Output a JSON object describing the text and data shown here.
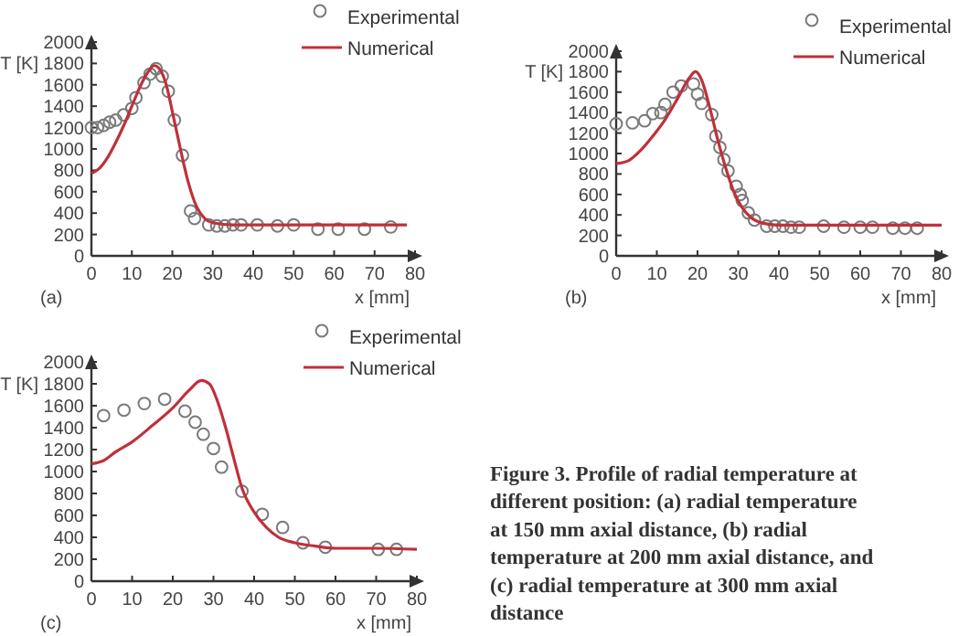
{
  "chart_data": [
    {
      "type": "line",
      "xlabel": "x [mm]",
      "ylabel": "T [K]",
      "annotations": [
        "(a)"
      ],
      "xlim": [
        0,
        80
      ],
      "ylim": [
        0,
        2000
      ],
      "xticks": [
        0,
        10,
        20,
        30,
        40,
        50,
        60,
        70,
        80
      ],
      "yticks": [
        0,
        200,
        400,
        600,
        800,
        1000,
        1200,
        1400,
        1600,
        1800,
        2000
      ],
      "grid": false,
      "legend": "top right",
      "series": [
        {
          "name": "Experimental",
          "type": "scatter",
          "marker": "circle",
          "color": "#7a7a7a",
          "x": [
            0,
            1.5,
            3,
            4.5,
            6,
            8,
            10,
            11,
            13,
            14.5,
            16,
            17.5,
            19,
            20.5,
            22.5,
            24.5,
            25.5,
            29,
            31,
            33,
            35,
            37,
            41,
            46,
            50,
            56,
            61,
            67.5,
            74
          ],
          "values": [
            1200,
            1200,
            1220,
            1250,
            1270,
            1320,
            1380,
            1480,
            1620,
            1700,
            1750,
            1680,
            1540,
            1270,
            940,
            420,
            350,
            290,
            280,
            280,
            290,
            290,
            290,
            280,
            290,
            250,
            250,
            250,
            270
          ]
        },
        {
          "name": "Numerical",
          "type": "line",
          "line_style": "solid",
          "color": "#c0303a",
          "x": [
            0,
            2,
            4,
            6,
            8,
            10,
            12,
            14,
            15.5,
            17,
            18.5,
            20,
            22,
            24,
            26,
            28,
            30,
            35,
            40,
            50,
            60,
            78
          ],
          "values": [
            770,
            820,
            920,
            1060,
            1220,
            1400,
            1580,
            1720,
            1780,
            1740,
            1600,
            1350,
            1000,
            680,
            460,
            350,
            310,
            290,
            290,
            290,
            290,
            290
          ]
        }
      ]
    },
    {
      "type": "line",
      "xlabel": "x [mm]",
      "ylabel": "T [K]",
      "annotations": [
        "(b)"
      ],
      "xlim": [
        0,
        80
      ],
      "ylim": [
        0,
        2000
      ],
      "xticks": [
        0,
        10,
        20,
        30,
        40,
        50,
        60,
        70,
        80
      ],
      "yticks": [
        0,
        200,
        400,
        600,
        800,
        1000,
        1200,
        1400,
        1600,
        1800,
        2000
      ],
      "grid": false,
      "legend": "top right",
      "series": [
        {
          "name": "Experimental",
          "type": "scatter",
          "marker": "circle",
          "color": "#7a7a7a",
          "x": [
            0,
            4,
            7,
            9,
            11,
            12,
            14,
            16,
            19,
            20,
            21,
            23.5,
            24.5,
            25.5,
            26.5,
            27.5,
            29.5,
            30.5,
            31,
            32.5,
            34,
            37,
            39,
            41,
            43,
            45,
            51,
            56,
            60,
            63,
            68,
            71,
            74
          ],
          "values": [
            1290,
            1300,
            1320,
            1390,
            1400,
            1480,
            1600,
            1660,
            1680,
            1580,
            1490,
            1380,
            1170,
            1060,
            940,
            830,
            680,
            600,
            540,
            420,
            350,
            290,
            290,
            290,
            280,
            280,
            290,
            280,
            280,
            280,
            270,
            270,
            270
          ]
        },
        {
          "name": "Numerical",
          "type": "line",
          "line_style": "solid",
          "color": "#c0303a",
          "x": [
            0,
            3,
            6,
            9,
            12,
            15,
            18,
            19.5,
            21,
            23,
            25,
            27,
            29,
            31,
            33,
            36,
            40,
            50,
            60,
            80
          ],
          "values": [
            900,
            930,
            1030,
            1170,
            1330,
            1530,
            1740,
            1800,
            1720,
            1450,
            1130,
            850,
            620,
            470,
            380,
            320,
            300,
            300,
            300,
            300
          ]
        }
      ]
    },
    {
      "type": "line",
      "xlabel": "x [mm]",
      "ylabel": "T [K]",
      "annotations": [
        "(c)"
      ],
      "xlim": [
        0,
        80
      ],
      "ylim": [
        0,
        2000
      ],
      "xticks": [
        0,
        10,
        20,
        30,
        40,
        50,
        60,
        70,
        80
      ],
      "yticks": [
        0,
        200,
        400,
        600,
        800,
        1000,
        1200,
        1400,
        1600,
        1800,
        2000
      ],
      "grid": false,
      "legend": "top right",
      "series": [
        {
          "name": "Experimental",
          "type": "scatter",
          "marker": "circle",
          "color": "#7a7a7a",
          "x": [
            3,
            8,
            13,
            18,
            23,
            25.5,
            27.5,
            30,
            32,
            37,
            42,
            47,
            52,
            57.5,
            70.5,
            75
          ],
          "values": [
            1510,
            1560,
            1620,
            1660,
            1550,
            1450,
            1340,
            1210,
            1040,
            820,
            610,
            490,
            350,
            310,
            290,
            290
          ]
        },
        {
          "name": "Numerical",
          "type": "line",
          "line_style": "solid",
          "color": "#c0303a",
          "x": [
            0,
            3,
            6,
            10,
            15,
            20,
            24,
            27,
            29,
            31,
            33,
            35,
            37,
            40,
            43,
            46,
            50,
            55,
            60,
            70,
            80
          ],
          "values": [
            1070,
            1100,
            1180,
            1270,
            1420,
            1580,
            1740,
            1830,
            1800,
            1640,
            1400,
            1120,
            850,
            630,
            490,
            400,
            350,
            320,
            300,
            300,
            290
          ]
        }
      ]
    },
    {
      "type": "other",
      "title": "Figure 3. Profile of radial temperature at different position: (a) radial temperature at 150 mm axial distance, (b) radial temperature at 200 mm axial distance, and (c) radial temperature at 300 mm axial distance"
    }
  ]
}
